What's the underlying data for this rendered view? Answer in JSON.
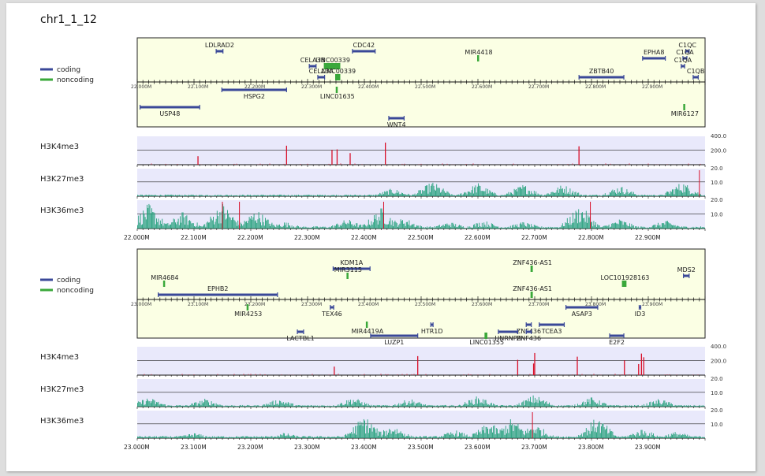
{
  "title": "chr1_1_12",
  "legend": {
    "coding": {
      "label": "coding",
      "color": "#3a4898"
    },
    "noncoding": {
      "label": "noncoding",
      "color": "#3aa83a"
    }
  },
  "colors": {
    "gene_panel_bg": "#fbffe4",
    "track_bg": "#e9e9fb",
    "signal": "#22a07a",
    "peak": "#d8102a"
  },
  "panels": [
    {
      "start_mb": 22.0,
      "end_mb": 23.0,
      "axis_ticks": [
        "22.000M",
        "22.100M",
        "22.200M",
        "22.300M",
        "22.400M",
        "22.500M",
        "22.600M",
        "22.700M",
        "22.800M",
        "22.900M"
      ],
      "bottom_ticks": [
        "22.000M",
        "22.100M",
        "22.200M",
        "22.300M",
        "22.400M",
        "22.500M",
        "22.600M",
        "22.700M",
        "22.800M",
        "22.900M"
      ],
      "genes": [
        {
          "name": "LDLRAD2",
          "start": 22.139,
          "end": 22.151,
          "type": "coding",
          "side": "top",
          "lane": 0
        },
        {
          "name": "CDC42",
          "start": 22.379,
          "end": 22.419,
          "type": "coding",
          "side": "top",
          "lane": 0
        },
        {
          "name": "C1QC",
          "start": 22.966,
          "end": 22.972,
          "type": "coding",
          "side": "top",
          "lane": 0
        },
        {
          "name": "MIR4418",
          "start": 22.6,
          "end": 22.601,
          "type": "noncoding",
          "side": "top",
          "lane": 1
        },
        {
          "name": "EPHA8",
          "start": 22.89,
          "end": 22.93,
          "type": "coding",
          "side": "top",
          "lane": 1
        },
        {
          "name": "C1QA",
          "start": 22.961,
          "end": 22.968,
          "type": "coding",
          "side": "top",
          "lane": 1
        },
        {
          "name": "CELA3B",
          "start": 22.303,
          "end": 22.315,
          "type": "coding",
          "side": "top",
          "lane": 2
        },
        {
          "name": "LINC00339",
          "start": 22.33,
          "end": 22.359,
          "type": "noncoding",
          "side": "top",
          "lane": 2
        },
        {
          "name": "C1QA",
          "start": 22.958,
          "end": 22.964,
          "type": "coding",
          "side": "top",
          "lane": 2
        },
        {
          "name": "CELA3A",
          "start": 22.318,
          "end": 22.33,
          "type": "coding",
          "side": "top",
          "lane": 3
        },
        {
          "name": "LINC00339",
          "start": 22.35,
          "end": 22.359,
          "type": "noncoding",
          "side": "top",
          "lane": 3
        },
        {
          "name": "ZBTB40",
          "start": 22.778,
          "end": 22.857,
          "type": "coding",
          "side": "top",
          "lane": 3
        },
        {
          "name": "C1QB",
          "start": 22.979,
          "end": 22.988,
          "type": "coding",
          "side": "top",
          "lane": 3
        },
        {
          "name": "HSPG2",
          "start": 22.149,
          "end": 22.263,
          "type": "coding",
          "side": "bottom",
          "lane": 0
        },
        {
          "name": "LINC01635",
          "start": 22.351,
          "end": 22.354,
          "type": "noncoding",
          "side": "bottom",
          "lane": 0
        },
        {
          "name": "USP48",
          "start": 22.005,
          "end": 22.11,
          "type": "coding",
          "side": "bottom",
          "lane": 1
        },
        {
          "name": "MIR6127",
          "start": 22.963,
          "end": 22.964,
          "type": "noncoding",
          "side": "bottom",
          "lane": 1
        },
        {
          "name": "WNT4",
          "start": 22.443,
          "end": 22.47,
          "type": "coding",
          "side": "bottom",
          "lane": 2
        }
      ],
      "tracks": [
        {
          "name": "H3K4me3",
          "ticks": [
            "400.0",
            "200.0"
          ],
          "kind": "peaks",
          "peaks": [
            22.107,
            22.263,
            22.352,
            22.375,
            22.437,
            22.778,
            22.343
          ]
        },
        {
          "name": "H3K27me3",
          "ticks": [
            "20.0",
            "10.0"
          ],
          "kind": "k27",
          "regions": [
            [
              22.45,
              0.3
            ],
            [
              22.52,
              0.55
            ],
            [
              22.6,
              0.5
            ],
            [
              22.68,
              0.45
            ],
            [
              22.75,
              0.45
            ],
            [
              22.85,
              0.4
            ],
            [
              22.96,
              0.55
            ]
          ],
          "highlights": [
            22.99
          ]
        },
        {
          "name": "H3K36me3",
          "ticks": [
            "20.0",
            "10.0"
          ],
          "kind": "k36",
          "regions": [
            [
              22.02,
              0.9
            ],
            [
              22.08,
              0.6
            ],
            [
              22.15,
              0.95
            ],
            [
              22.21,
              0.7
            ],
            [
              22.26,
              0.25
            ],
            [
              22.37,
              0.35
            ],
            [
              22.43,
              0.75
            ],
            [
              22.47,
              0.4
            ],
            [
              22.55,
              0.25
            ],
            [
              22.61,
              0.3
            ],
            [
              22.68,
              0.25
            ],
            [
              22.78,
              0.85
            ],
            [
              22.85,
              0.35
            ],
            [
              22.93,
              0.3
            ]
          ],
          "highlights": [
            22.15,
            22.18,
            22.434,
            22.798
          ]
        }
      ]
    },
    {
      "start_mb": 23.0,
      "end_mb": 24.0,
      "axis_ticks": [
        "23.000M",
        "23.100M",
        "23.200M",
        "23.300M",
        "23.400M",
        "23.500M",
        "23.600M",
        "23.700M",
        "23.800M",
        "23.900M"
      ],
      "bottom_ticks": [
        "23.000M",
        "23.100M",
        "23.200M",
        "23.300M",
        "23.400M",
        "23.500M",
        "23.600M",
        "23.700M",
        "23.800M",
        "23.900M"
      ],
      "genes": [
        {
          "name": "KDM1A",
          "start": 23.345,
          "end": 23.41,
          "type": "coding",
          "side": "top",
          "lane": 0
        },
        {
          "name": "ZNF436-AS1",
          "start": 23.694,
          "end": 23.698,
          "type": "noncoding",
          "side": "top",
          "lane": 0
        },
        {
          "name": "MIR3115",
          "start": 23.37,
          "end": 23.371,
          "type": "noncoding",
          "side": "top",
          "lane": 1
        },
        {
          "name": "MDS2",
          "start": 23.962,
          "end": 23.972,
          "type": "coding",
          "side": "top",
          "lane": 1
        },
        {
          "name": "MIR4684",
          "start": 23.047,
          "end": 23.048,
          "type": "noncoding",
          "side": "top",
          "lane": 2
        },
        {
          "name": "LOC101928163",
          "start": 23.855,
          "end": 23.863,
          "type": "noncoding",
          "side": "top",
          "lane": 2
        },
        {
          "name": "EPHB2",
          "start": 23.037,
          "end": 23.247,
          "type": "coding",
          "side": "top",
          "lane": 3
        },
        {
          "name": "ZNF436-AS1",
          "start": 23.694,
          "end": 23.698,
          "type": "noncoding",
          "side": "top",
          "lane": 3
        },
        {
          "name": "MIR4253",
          "start": 23.194,
          "end": 23.195,
          "type": "noncoding",
          "side": "bottom",
          "lane": 0
        },
        {
          "name": "TEX46",
          "start": 23.34,
          "end": 23.346,
          "type": "coding",
          "side": "bottom",
          "lane": 0
        },
        {
          "name": "ASAP3",
          "start": 23.755,
          "end": 23.811,
          "type": "coding",
          "side": "bottom",
          "lane": 0
        },
        {
          "name": "ID3",
          "start": 23.884,
          "end": 23.886,
          "type": "coding",
          "side": "bottom",
          "lane": 0
        },
        {
          "name": "MIR4419A",
          "start": 23.404,
          "end": 23.405,
          "type": "noncoding",
          "side": "bottom",
          "lane": 1
        },
        {
          "name": "HTR1D",
          "start": 23.517,
          "end": 23.521,
          "type": "coding",
          "side": "bottom",
          "lane": 1
        },
        {
          "name": "ZNF436",
          "start": 23.685,
          "end": 23.694,
          "type": "coding",
          "side": "bottom",
          "lane": 1
        },
        {
          "name": "TCEA3",
          "start": 23.708,
          "end": 23.752,
          "type": "coding",
          "side": "bottom",
          "lane": 1
        },
        {
          "name": "LUZP1",
          "start": 23.411,
          "end": 23.494,
          "type": "coding",
          "side": "bottom",
          "lane": 2
        },
        {
          "name": "LINC01355",
          "start": 23.613,
          "end": 23.618,
          "type": "noncoding",
          "side": "bottom",
          "lane": 2
        },
        {
          "name": "E2F2",
          "start": 23.832,
          "end": 23.857,
          "type": "coding",
          "side": "bottom",
          "lane": 2
        },
        {
          "name": "LACTBL1",
          "start": 23.282,
          "end": 23.293,
          "type": "coding",
          "side": "bottom",
          "lane": 3
        },
        {
          "name": "HNRNPR",
          "start": 23.636,
          "end": 23.67,
          "type": "coding",
          "side": "bottom",
          "lane": 3
        },
        {
          "name": "ZNF436",
          "start": 23.685,
          "end": 23.694,
          "type": "coding",
          "side": "bottom",
          "lane": 3
        }
      ],
      "tracks": [
        {
          "name": "H3K4me3",
          "ticks": [
            "400.0",
            "200.0"
          ],
          "kind": "peaks",
          "peaks": [
            23.347,
            23.494,
            23.67,
            23.698,
            23.7,
            23.775,
            23.858,
            23.883,
            23.888,
            23.892
          ]
        },
        {
          "name": "H3K27me3",
          "ticks": [
            "20.0",
            "10.0"
          ],
          "kind": "k27",
          "regions": [
            [
              23.02,
              0.35
            ],
            [
              23.12,
              0.3
            ],
            [
              23.25,
              0.3
            ],
            [
              23.38,
              0.35
            ],
            [
              23.48,
              0.3
            ],
            [
              23.6,
              0.4
            ],
            [
              23.7,
              0.45
            ],
            [
              23.8,
              0.35
            ],
            [
              23.92,
              0.3
            ]
          ],
          "highlights": []
        },
        {
          "name": "H3K36me3",
          "ticks": [
            "20.0",
            "10.0"
          ],
          "kind": "k36",
          "regions": [
            [
              23.1,
              0.2
            ],
            [
              23.26,
              0.2
            ],
            [
              23.4,
              0.85
            ],
            [
              23.45,
              0.5
            ],
            [
              23.56,
              0.3
            ],
            [
              23.62,
              0.6
            ],
            [
              23.66,
              0.75
            ],
            [
              23.7,
              0.55
            ],
            [
              23.81,
              0.8
            ],
            [
              23.89,
              0.35
            ],
            [
              23.95,
              0.25
            ]
          ],
          "highlights": [
            23.696
          ]
        }
      ]
    }
  ]
}
